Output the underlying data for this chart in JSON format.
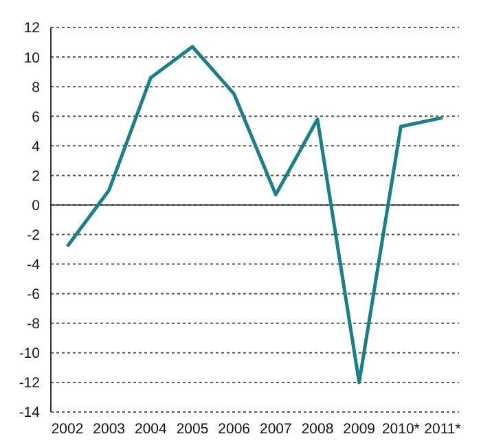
{
  "chart_data": {
    "type": "line",
    "categories": [
      "2002",
      "2003",
      "2004",
      "2005",
      "2006",
      "2007",
      "2008",
      "2009",
      "2010*",
      "2011*"
    ],
    "series": [
      {
        "color": "#1b7f87",
        "values": [
          -2.8,
          1.0,
          8.6,
          10.7,
          7.5,
          0.7,
          5.8,
          -12.0,
          5.3,
          5.9
        ]
      }
    ],
    "ylim": [
      -14,
      12
    ],
    "yticks": [
      -14,
      -12,
      -10,
      -8,
      -6,
      -4,
      -2,
      0,
      2,
      4,
      6,
      8,
      10,
      12
    ],
    "grid": "y",
    "legend": false,
    "marker": "none",
    "line_style": "solid"
  }
}
